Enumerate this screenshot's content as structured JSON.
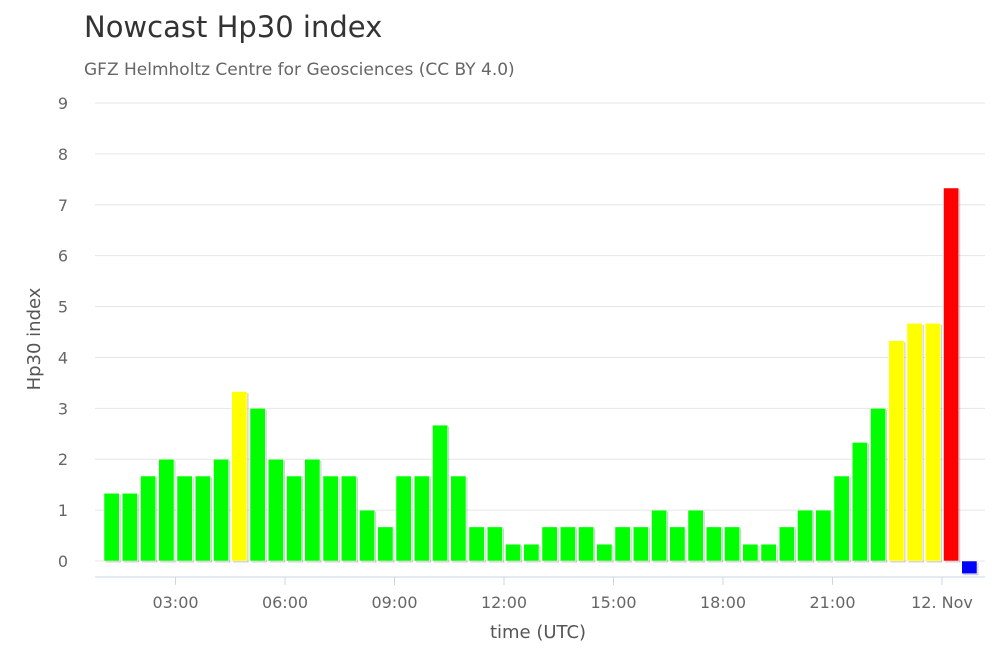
{
  "chart_data": {
    "type": "bar",
    "title": "Nowcast Hp30 index",
    "subtitle": "GFZ Helmholtz Centre for Geosciences (CC BY 4.0)",
    "xlabel": "time (UTC)",
    "ylabel": "Hp30 index",
    "ylim": [
      0,
      9
    ],
    "yticks": [
      "0",
      "1",
      "2",
      "3",
      "4",
      "5",
      "6",
      "7",
      "8",
      "9"
    ],
    "xticks": [
      {
        "label": "03:00",
        "hour": 3
      },
      {
        "label": "06:00",
        "hour": 6
      },
      {
        "label": "09:00",
        "hour": 9
      },
      {
        "label": "12:00",
        "hour": 12
      },
      {
        "label": "15:00",
        "hour": 15
      },
      {
        "label": "18:00",
        "hour": 18
      },
      {
        "label": "21:00",
        "hour": 21
      },
      {
        "label": "12. Nov",
        "hour": 24
      }
    ],
    "interval_hours": 0.5,
    "series": [
      {
        "start_hours": [
          1.0,
          1.5,
          2.0,
          2.5,
          3.0,
          3.5,
          4.0,
          4.5,
          5.0,
          5.5,
          6.0,
          6.5,
          7.0,
          7.5,
          8.0,
          8.5,
          9.0,
          9.5,
          10.0,
          10.5,
          11.0,
          11.5,
          12.0,
          12.5,
          13.0,
          13.5,
          14.0,
          14.5,
          15.0,
          15.5,
          16.0,
          16.5,
          17.0,
          17.5,
          18.0,
          18.5,
          19.0,
          19.5,
          20.0,
          20.5,
          21.0,
          21.5,
          22.0,
          22.5,
          23.0,
          23.5,
          24.0,
          24.5
        ],
        "values": [
          1.33,
          1.33,
          1.67,
          2.0,
          1.67,
          1.67,
          2.0,
          3.33,
          3.0,
          2.0,
          1.67,
          2.0,
          1.67,
          1.67,
          1.0,
          0.67,
          1.67,
          1.67,
          2.67,
          1.67,
          0.67,
          0.67,
          0.33,
          0.33,
          0.67,
          0.67,
          0.67,
          0.33,
          0.67,
          0.67,
          1.0,
          0.67,
          1.0,
          0.67,
          0.67,
          0.33,
          0.33,
          0.67,
          1.0,
          1.0,
          1.67,
          2.33,
          3.0,
          4.33,
          4.67,
          4.67,
          7.33,
          -0.25
        ],
        "colors": [
          "#00ff00",
          "#00ff00",
          "#00ff00",
          "#00ff00",
          "#00ff00",
          "#00ff00",
          "#00ff00",
          "#ffff00",
          "#00ff00",
          "#00ff00",
          "#00ff00",
          "#00ff00",
          "#00ff00",
          "#00ff00",
          "#00ff00",
          "#00ff00",
          "#00ff00",
          "#00ff00",
          "#00ff00",
          "#00ff00",
          "#00ff00",
          "#00ff00",
          "#00ff00",
          "#00ff00",
          "#00ff00",
          "#00ff00",
          "#00ff00",
          "#00ff00",
          "#00ff00",
          "#00ff00",
          "#00ff00",
          "#00ff00",
          "#00ff00",
          "#00ff00",
          "#00ff00",
          "#00ff00",
          "#00ff00",
          "#00ff00",
          "#00ff00",
          "#00ff00",
          "#00ff00",
          "#00ff00",
          "#00ff00",
          "#ffff00",
          "#ffff00",
          "#ffff00",
          "#ff0000",
          "#0000ff"
        ]
      }
    ],
    "grid": true,
    "legend": "none"
  }
}
